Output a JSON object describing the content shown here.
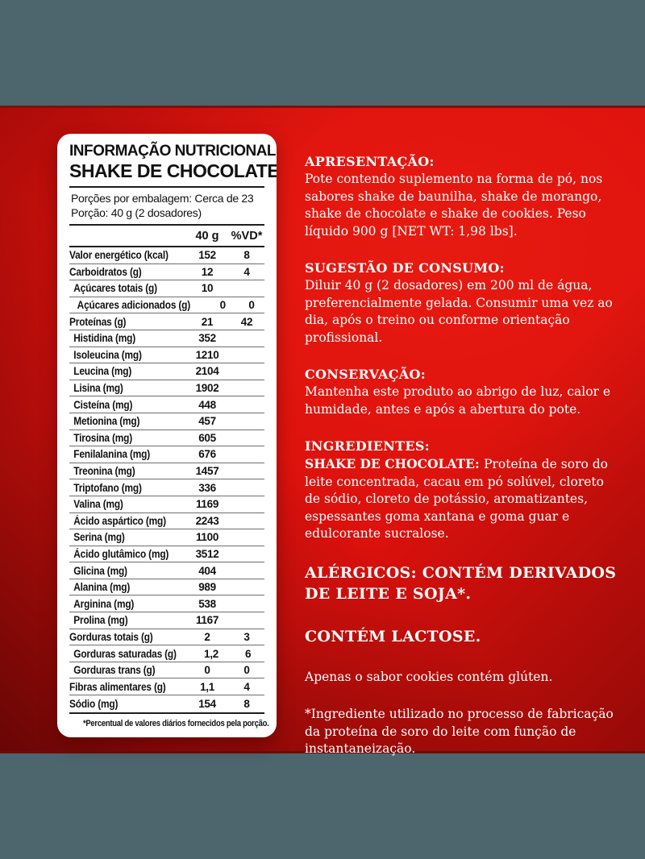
{
  "colors": {
    "band_gray": "#4d666e",
    "red_base": "#dd110d",
    "red_dark_line_top": "#7e100c",
    "red_dark_line_bottom": "#6e0b08",
    "panel_bg": "#ffffff",
    "panel_text": "#111111",
    "info_text": "#ffffff"
  },
  "panel": {
    "title": "INFORMAÇÃO NUTRICIONAL",
    "product_name": "SHAKE DE CHOCOLATE",
    "servings_line1": "Porções por embalagem: Cerca de 23",
    "servings_line2": "Porção: 40 g (2 dosadores)",
    "columns": {
      "amount": "40 g",
      "dv": "%VD*"
    },
    "rows": [
      {
        "label": "Valor energético (kcal)",
        "amount": "152",
        "dv": "8",
        "indent": 0
      },
      {
        "label": "Carboidratos (g)",
        "amount": "12",
        "dv": "4",
        "indent": 0
      },
      {
        "label": "Açúcares totais (g)",
        "amount": "10",
        "dv": "",
        "indent": 1
      },
      {
        "label": "Açúcares adicionados (g)",
        "amount": "0",
        "dv": "0",
        "indent": 2
      },
      {
        "label": "Proteínas (g)",
        "amount": "21",
        "dv": "42",
        "indent": 0
      },
      {
        "label": "Histidina (mg)",
        "amount": "352",
        "dv": "",
        "indent": 1
      },
      {
        "label": "Isoleucina (mg)",
        "amount": "1210",
        "dv": "",
        "indent": 1
      },
      {
        "label": "Leucina (mg)",
        "amount": "2104",
        "dv": "",
        "indent": 1
      },
      {
        "label": "Lisina (mg)",
        "amount": "1902",
        "dv": "",
        "indent": 1
      },
      {
        "label": "Cisteína (mg)",
        "amount": "448",
        "dv": "",
        "indent": 1
      },
      {
        "label": "Metionina (mg)",
        "amount": "457",
        "dv": "",
        "indent": 1
      },
      {
        "label": "Tirosina (mg)",
        "amount": "605",
        "dv": "",
        "indent": 1
      },
      {
        "label": "Fenilalanina (mg)",
        "amount": "676",
        "dv": "",
        "indent": 1
      },
      {
        "label": "Treonina (mg)",
        "amount": "1457",
        "dv": "",
        "indent": 1
      },
      {
        "label": "Triptofano (mg)",
        "amount": "336",
        "dv": "",
        "indent": 1
      },
      {
        "label": "Valina (mg)",
        "amount": "1169",
        "dv": "",
        "indent": 1
      },
      {
        "label": "Ácido aspártico (mg)",
        "amount": "2243",
        "dv": "",
        "indent": 1
      },
      {
        "label": "Serina (mg)",
        "amount": "1100",
        "dv": "",
        "indent": 1
      },
      {
        "label": "Ácido glutâmico (mg)",
        "amount": "3512",
        "dv": "",
        "indent": 1
      },
      {
        "label": "Glicina (mg)",
        "amount": "404",
        "dv": "",
        "indent": 1
      },
      {
        "label": "Alanina (mg)",
        "amount": "989",
        "dv": "",
        "indent": 1
      },
      {
        "label": "Arginina (mg)",
        "amount": "538",
        "dv": "",
        "indent": 1
      },
      {
        "label": "Prolina (mg)",
        "amount": "1167",
        "dv": "",
        "indent": 1
      },
      {
        "label": "Gorduras totais (g)",
        "amount": "2",
        "dv": "3",
        "indent": 0
      },
      {
        "label": "Gorduras saturadas (g)",
        "amount": "1,2",
        "dv": "6",
        "indent": 1
      },
      {
        "label": "Gorduras trans (g)",
        "amount": "0",
        "dv": "0",
        "indent": 1
      },
      {
        "label": "Fibras alimentares (g)",
        "amount": "1,1",
        "dv": "4",
        "indent": 0
      },
      {
        "label": "Sódio (mg)",
        "amount": "154",
        "dv": "8",
        "indent": 0
      }
    ],
    "footnote": "*Percentual de valores diários fornecidos pela porção."
  },
  "info": {
    "sections": [
      {
        "heading": "APRESENTAÇÃO:",
        "body": "Pote contendo suplemento na forma de pó, nos sabores shake de baunilha, shake de morango, shake de chocolate e shake de cookies. Peso líquido 900 g [NET WT: 1,98 lbs].",
        "style": ""
      },
      {
        "heading": "SUGESTÃO DE CONSUMO:",
        "body": "Diluir 40 g (2 dosadores) em 200 ml de água, preferencialmente gelada. Consumir uma vez ao dia, após o treino ou conforme orientação profissional.",
        "style": ""
      },
      {
        "heading": "CONSERVAÇÃO:",
        "body": "Mantenha este produto ao abrigo de luz, calor e humidade, antes e após a abertura do pote.",
        "style": ""
      },
      {
        "heading": "INGREDIENTES:",
        "bold_lead": "SHAKE DE CHOCOLATE:",
        "body": "Proteína de soro do leite concentrada, cacau em pó solúvel, cloreto de sódio, cloreto de potássio, aromatizantes, espessantes goma xantana e goma guar e edulcorante sucralose.",
        "style": ""
      },
      {
        "heading": "ALÉRGICOS: CONTÉM DERIVADOS DE LEITE E SOJA*.",
        "style": "big"
      },
      {
        "heading": "CONTÉM LACTOSE.",
        "style": "big"
      },
      {
        "body": "Apenas o sabor cookies contém glúten.",
        "style": "note"
      },
      {
        "body": "*Ingrediente utilizado no processo de fabricação da proteína de soro do leite com função de instantaneização.",
        "style": "note"
      }
    ]
  }
}
